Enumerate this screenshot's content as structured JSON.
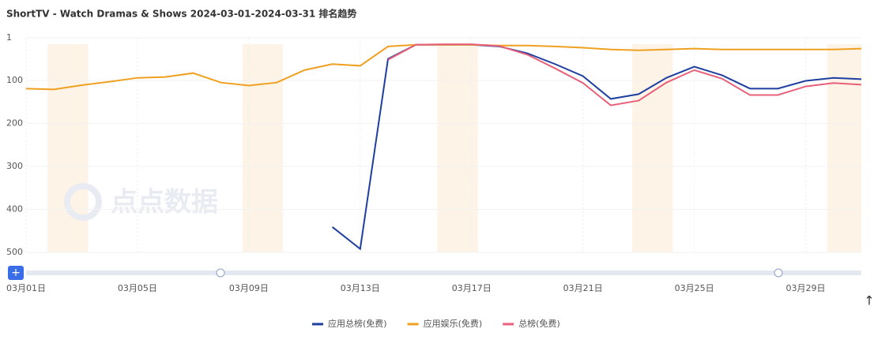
{
  "chart_data": {
    "type": "line",
    "title": "ShortTV - Watch Dramas & Shows 2024-03-01-2024-03-31 排名趋势",
    "watermark": "点点数据",
    "categories": [
      "03月01日",
      null,
      null,
      null,
      "03月05日",
      null,
      null,
      null,
      "03月09日",
      null,
      null,
      null,
      "03月13日",
      null,
      null,
      null,
      "03月17日",
      null,
      null,
      null,
      "03月21日",
      null,
      null,
      null,
      "03月25日",
      null,
      null,
      null,
      "03月29日",
      null,
      null
    ],
    "series": [
      {
        "name": "应用总榜(免费)",
        "color": "#1f3fa0",
        "values": [
          null,
          null,
          null,
          null,
          null,
          null,
          null,
          null,
          null,
          null,
          null,
          441,
          492,
          50,
          17,
          17,
          17,
          21,
          37,
          62,
          90,
          143,
          132,
          94,
          68,
          88,
          119,
          119,
          101,
          94,
          97
        ]
      },
      {
        "name": "应用娱乐(免费)",
        "color": "#f0a020",
        "values": [
          119,
          121,
          111,
          103,
          94,
          92,
          83,
          105,
          112,
          105,
          76,
          62,
          66,
          21,
          17,
          17,
          17,
          19,
          19,
          21,
          24,
          28,
          30,
          28,
          26,
          28,
          28,
          28,
          28,
          28,
          26
        ]
      },
      {
        "name": "总榜(免费)",
        "color": "#e8607a",
        "values": [
          null,
          null,
          null,
          null,
          null,
          null,
          null,
          null,
          null,
          null,
          null,
          null,
          null,
          52,
          17,
          16,
          16,
          20,
          40,
          72,
          106,
          158,
          147,
          105,
          76,
          96,
          134,
          134,
          114,
          106,
          110
        ]
      }
    ],
    "ylim": [
      1,
      500
    ],
    "y_inverted": true,
    "yticks": [
      1,
      100,
      200,
      300,
      400,
      500
    ],
    "grid": true
  }
}
